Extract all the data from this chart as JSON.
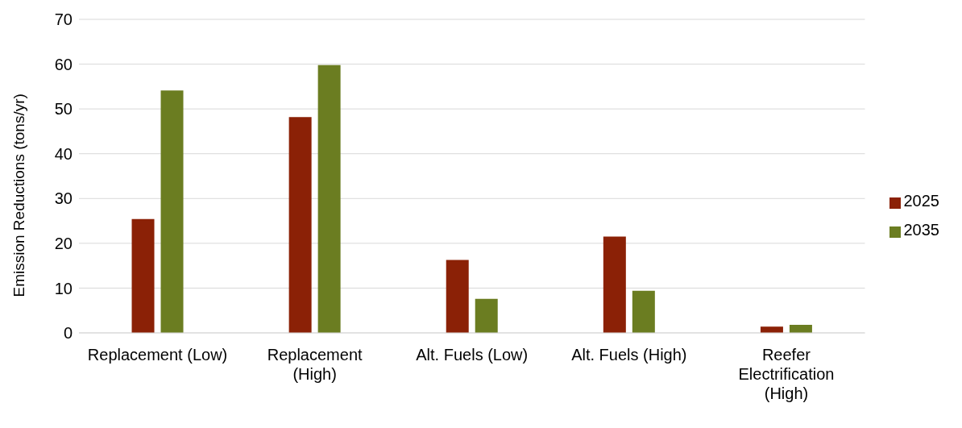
{
  "chart_data": {
    "type": "bar",
    "ylabel": "Emission Reductions (tons/yr)",
    "categories": [
      "Replacement (Low)",
      "Replacement (High)",
      "Alt. Fuels (Low)",
      "Alt. Fuels (High)",
      "Reefer Electrification (High)"
    ],
    "series": [
      {
        "name": "2025",
        "color": "#8b2106",
        "values": [
          25.4,
          48.2,
          16.3,
          21.5,
          1.4
        ]
      },
      {
        "name": "2035",
        "color": "#6b7d21",
        "values": [
          54.1,
          59.8,
          7.6,
          9.4,
          1.8
        ]
      }
    ],
    "ylim": [
      0,
      70
    ],
    "yticks": [
      0,
      10,
      20,
      30,
      40,
      50,
      60,
      70
    ],
    "grid": "y",
    "legend": "right"
  }
}
